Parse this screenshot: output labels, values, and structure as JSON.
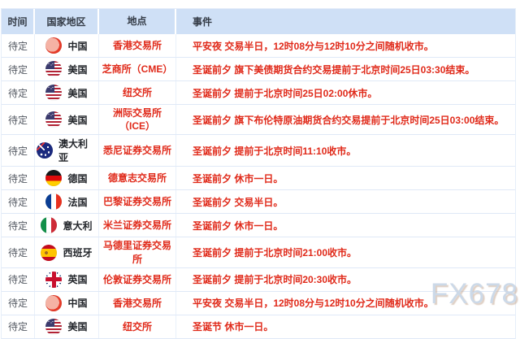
{
  "table": {
    "columns": [
      {
        "key": "time",
        "label": "时间"
      },
      {
        "key": "country",
        "label": "国家地区"
      },
      {
        "key": "location",
        "label": "地点"
      },
      {
        "key": "event",
        "label": "事件"
      }
    ],
    "rows": [
      {
        "time": "待定",
        "country": "中国",
        "flag": "cn",
        "location": "香港交易所",
        "event": "平安夜 交易半日，12时08分与12时10分之间随机收市。"
      },
      {
        "time": "待定",
        "country": "美国",
        "flag": "us",
        "location": "芝商所（CME）",
        "event": "圣诞前夕 旗下美债期货合约交易提前于北京时间25日03:30结束。"
      },
      {
        "time": "待定",
        "country": "美国",
        "flag": "us",
        "location": "纽交所",
        "event": "圣诞前夕 提前于北京时间25日02:00休市。"
      },
      {
        "time": "待定",
        "country": "美国",
        "flag": "us",
        "location": "洲际交易所（ICE）",
        "event": "圣诞前夕 旗下布伦特原油期货合约交易提前于北京时间25日03:00结束。"
      },
      {
        "time": "待定",
        "country": "澳大利亚",
        "flag": "au",
        "location": "悉尼证券交易所",
        "event": "圣诞前夕 提前于北京时间11:10收市。"
      },
      {
        "time": "待定",
        "country": "德国",
        "flag": "de",
        "location": "德意志交易所",
        "event": "圣诞前夕 休市一日。"
      },
      {
        "time": "待定",
        "country": "法国",
        "flag": "fr",
        "location": "巴黎证券交易所",
        "event": "圣诞前夕 交易半日。"
      },
      {
        "time": "待定",
        "country": "意大利",
        "flag": "it",
        "location": "米兰证券交易所",
        "event": "圣诞前夕 休市一日。"
      },
      {
        "time": "待定",
        "country": "西班牙",
        "flag": "es",
        "location": "马德里证券交易所",
        "event": "圣诞前夕 提前于北京时间21:00收市。"
      },
      {
        "time": "待定",
        "country": "英国",
        "flag": "gb",
        "location": "伦敦证券交易所",
        "event": "圣诞前夕 提前于北京时间20:30收市。"
      },
      {
        "time": "待定",
        "country": "中国",
        "flag": "cn",
        "location": "香港交易所",
        "event": "平安夜 交易半日，12时08分与12时10分之间随机收市。"
      },
      {
        "time": "待定",
        "country": "美国",
        "flag": "us",
        "location": "纽交所",
        "event": "圣诞节 休市一日。"
      }
    ]
  },
  "watermark": "FX678",
  "colors": {
    "header_bg": "#cfe0f6",
    "accent_red": "#e02a1a",
    "border": "#dfe9f7"
  }
}
